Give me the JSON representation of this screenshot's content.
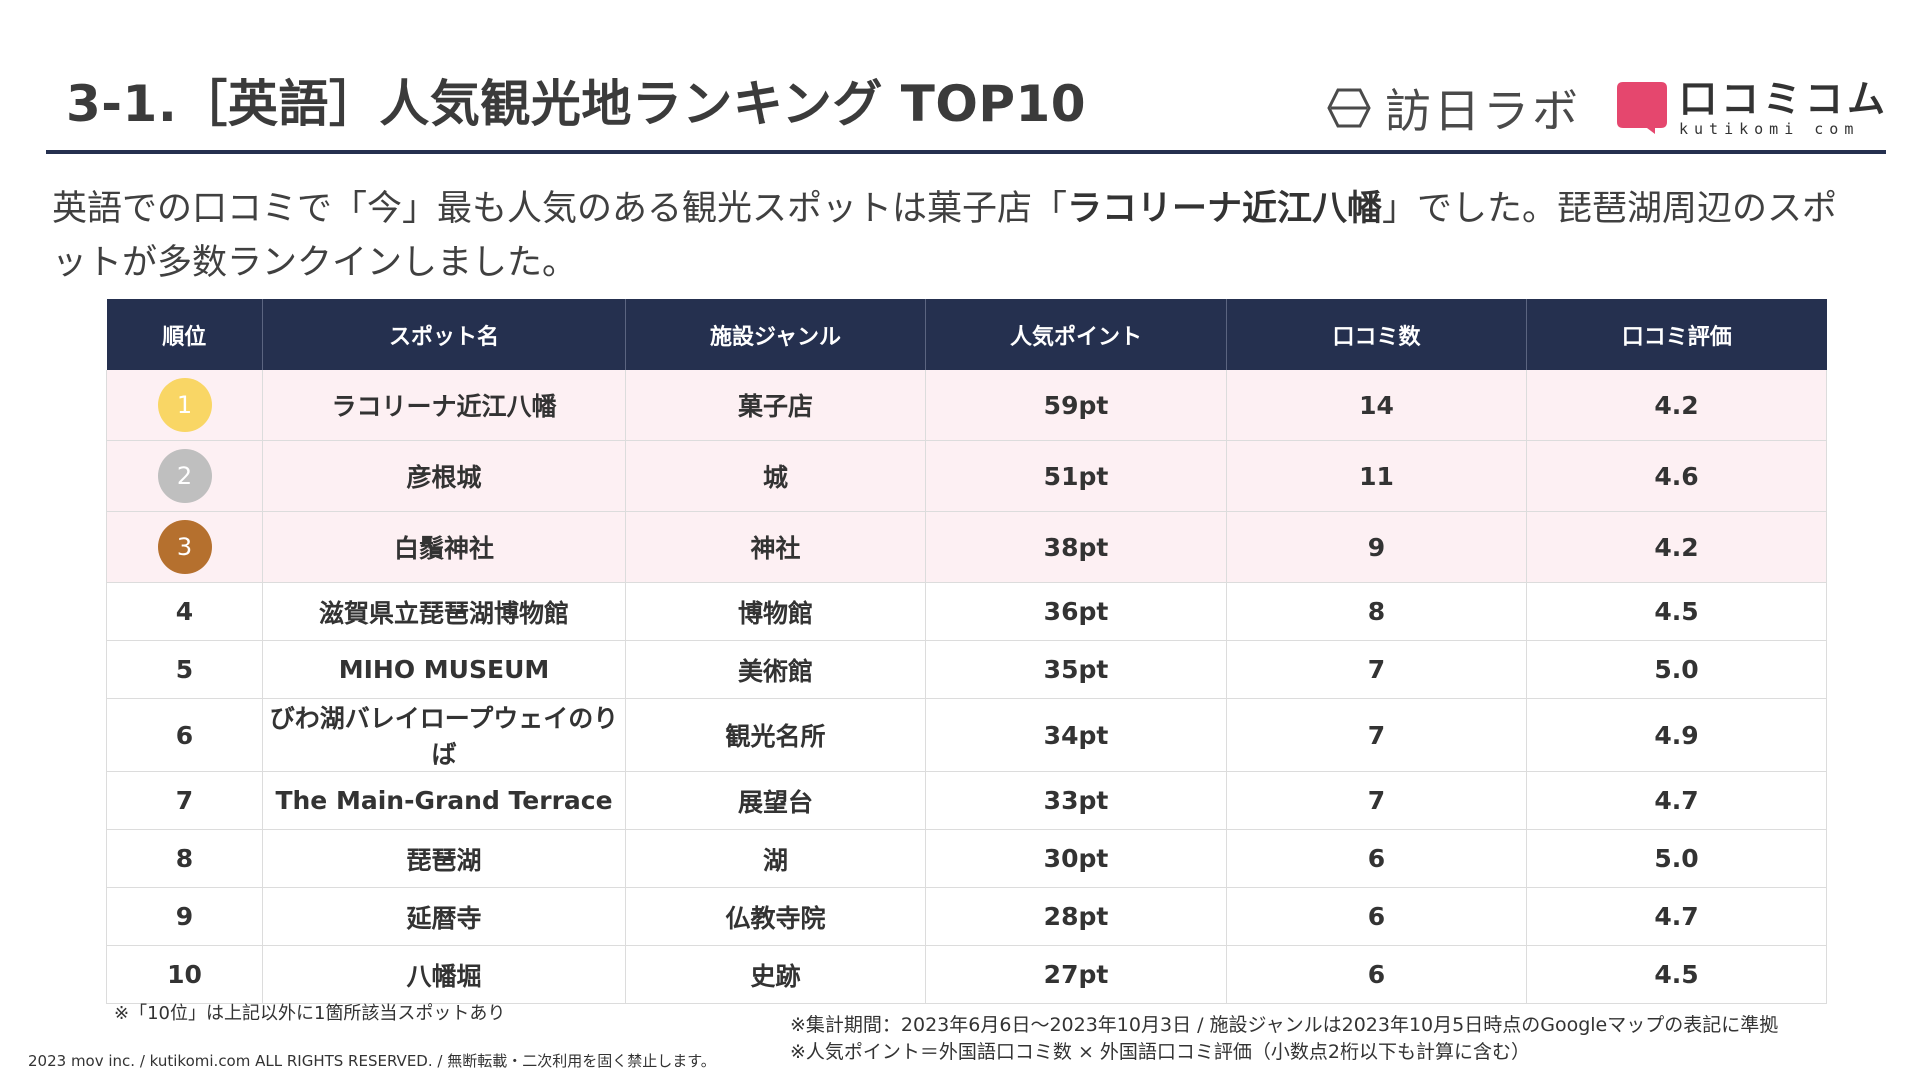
{
  "header": {
    "title": "3-1.［英語］人気観光地ランキング TOP10",
    "logo_houjin": "訪日ラボ",
    "logo_kuti_main": "口コミコム",
    "logo_kuti_sub": "kutikomi com"
  },
  "description": {
    "part1": "英語での口コミで「今」最も人気のある観光スポットは菓子店「",
    "highlight": "ラコリーナ近江八幡",
    "part2": "」でした。琵琶湖周辺のスポットが多数ランクインしました。"
  },
  "table": {
    "headers": [
      "順位",
      "スポット名",
      "施設ジャンル",
      "人気ポイント",
      "口コミ数",
      "口コミ評価"
    ],
    "rows": [
      {
        "rank": "1",
        "spot": "ラコリーナ近江八幡",
        "genre": "菓子店",
        "points": "59pt",
        "reviews": "14",
        "rating": "4.2",
        "medal": "#f9d665"
      },
      {
        "rank": "2",
        "spot": "彦根城",
        "genre": "城",
        "points": "51pt",
        "reviews": "11",
        "rating": "4.6",
        "medal": "#bfbfbf"
      },
      {
        "rank": "3",
        "spot": "白鬚神社",
        "genre": "神社",
        "points": "38pt",
        "reviews": "9",
        "rating": "4.2",
        "medal": "#b5702e"
      },
      {
        "rank": "4",
        "spot": "滋賀県立琵琶湖博物館",
        "genre": "博物館",
        "points": "36pt",
        "reviews": "8",
        "rating": "4.5"
      },
      {
        "rank": "5",
        "spot": "MIHO MUSEUM",
        "genre": "美術館",
        "points": "35pt",
        "reviews": "7",
        "rating": "5.0"
      },
      {
        "rank": "6",
        "spot": "びわ湖バレイロープウェイのりば",
        "genre": "観光名所",
        "points": "34pt",
        "reviews": "7",
        "rating": "4.9"
      },
      {
        "rank": "7",
        "spot": "The Main-Grand Terrace",
        "genre": "展望台",
        "points": "33pt",
        "reviews": "7",
        "rating": "4.7"
      },
      {
        "rank": "8",
        "spot": "琵琶湖",
        "genre": "湖",
        "points": "30pt",
        "reviews": "6",
        "rating": "5.0"
      },
      {
        "rank": "9",
        "spot": "延暦寺",
        "genre": "仏教寺院",
        "points": "28pt",
        "reviews": "6",
        "rating": "4.7"
      },
      {
        "rank": "10",
        "spot": "八幡堀",
        "genre": "史跡",
        "points": "27pt",
        "reviews": "6",
        "rating": "4.5"
      }
    ]
  },
  "notes": {
    "left": "※「10位」は上記以外に1箇所該当スポットあり",
    "right1": "※集計期間：2023年6月6日～2023年10月3日 / 施設ジャンルは2023年10月5日時点のGoogleマップの表記に準拠",
    "right2": "※人気ポイント＝外国語口コミ数 × 外国語口コミ評価（小数点2桁以下も計算に含む）"
  },
  "copyright": "2023 mov inc. / kutikomi.com ALL RIGHTS RESERVED. / 無断転載・二次利用を固く禁止します。",
  "colors": {
    "navy": "#25304f",
    "pink_row": "#fdf0f3",
    "kuti_pink": "#e5476e"
  }
}
